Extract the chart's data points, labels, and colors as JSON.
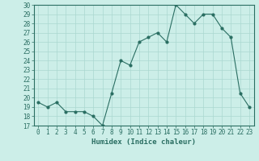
{
  "title": "",
  "xlabel": "Humidex (Indice chaleur)",
  "ylabel": "",
  "x": [
    0,
    1,
    2,
    3,
    4,
    5,
    6,
    7,
    8,
    9,
    10,
    11,
    12,
    13,
    14,
    15,
    16,
    17,
    18,
    19,
    20,
    21,
    22,
    23
  ],
  "y": [
    19.5,
    19.0,
    19.5,
    18.5,
    18.5,
    18.5,
    18.0,
    17.0,
    20.5,
    24.0,
    23.5,
    26.0,
    26.5,
    27.0,
    26.0,
    30.0,
    29.0,
    28.0,
    29.0,
    29.0,
    27.5,
    26.5,
    20.5,
    19.0
  ],
  "line_color": "#2a6e62",
  "marker": "o",
  "marker_size": 2.0,
  "bg_color": "#cceee8",
  "grid_color": "#aad8d0",
  "ylim": [
    17,
    30
  ],
  "xlim": [
    -0.5,
    23.5
  ],
  "yticks": [
    17,
    18,
    19,
    20,
    21,
    22,
    23,
    24,
    25,
    26,
    27,
    28,
    29,
    30
  ],
  "xticks": [
    0,
    1,
    2,
    3,
    4,
    5,
    6,
    7,
    8,
    9,
    10,
    11,
    12,
    13,
    14,
    15,
    16,
    17,
    18,
    19,
    20,
    21,
    22,
    23
  ],
  "tick_fontsize": 5.5,
  "xlabel_fontsize": 6.5
}
